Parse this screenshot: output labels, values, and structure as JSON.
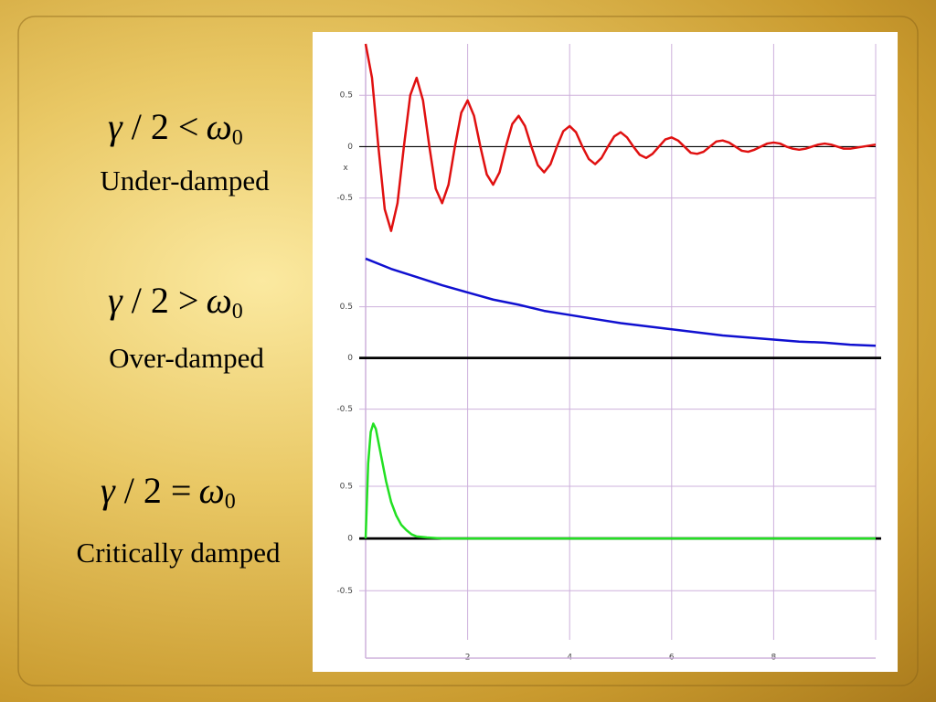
{
  "chart_data": [
    {
      "type": "line",
      "formula": [
        "γ",
        "/",
        "2",
        "<",
        "ω",
        "0"
      ],
      "label": "Under-damped",
      "ylabel": "x",
      "color": "#e01010",
      "xlim": [
        0,
        10
      ],
      "xticks": [
        2,
        4,
        6,
        8
      ],
      "xtick_labels": false,
      "ylim": [
        -0.93,
        1.0
      ],
      "yticks": [
        0.5,
        0,
        -0.5
      ],
      "x": [
        0,
        0.125,
        0.25,
        0.375,
        0.5,
        0.625,
        0.75,
        0.875,
        1,
        1.125,
        1.25,
        1.375,
        1.5,
        1.625,
        1.75,
        1.875,
        2,
        2.125,
        2.25,
        2.375,
        2.5,
        2.625,
        2.75,
        2.875,
        3,
        3.125,
        3.25,
        3.375,
        3.5,
        3.625,
        3.75,
        3.875,
        4,
        4.125,
        4.25,
        4.375,
        4.5,
        4.625,
        4.75,
        4.875,
        5,
        5.125,
        5.25,
        5.375,
        5.5,
        5.625,
        5.75,
        5.875,
        6,
        6.125,
        6.25,
        6.375,
        6.5,
        6.625,
        6.75,
        6.875,
        7,
        7.125,
        7.25,
        7.375,
        7.5,
        7.625,
        7.75,
        7.875,
        8,
        8.125,
        8.25,
        8.375,
        8.5,
        8.625,
        8.75,
        8.875,
        9,
        9.125,
        9.25,
        9.375,
        9.5,
        9.625,
        9.75,
        9.875,
        10
      ],
      "values": [
        1.0,
        0.67,
        0,
        -0.61,
        -0.82,
        -0.55,
        0,
        0.5,
        0.67,
        0.45,
        0,
        -0.41,
        -0.55,
        -0.37,
        0,
        0.33,
        0.45,
        0.3,
        0,
        -0.27,
        -0.37,
        -0.25,
        0,
        0.22,
        0.3,
        0.2,
        0,
        -0.18,
        -0.25,
        -0.17,
        0,
        0.15,
        0.2,
        0.14,
        0,
        -0.12,
        -0.17,
        -0.11,
        0,
        0.1,
        0.14,
        0.09,
        0,
        -0.08,
        -0.11,
        -0.07,
        0,
        0.07,
        0.09,
        0.06,
        0,
        -0.06,
        -0.07,
        -0.05,
        0,
        0.05,
        0.06,
        0.04,
        0,
        -0.04,
        -0.05,
        -0.03,
        0,
        0.03,
        0.04,
        0.03,
        0,
        -0.02,
        -0.03,
        -0.02,
        0,
        0.02,
        0.03,
        0.02,
        0,
        -0.02,
        -0.02,
        -0.01,
        0,
        0.01,
        0.02
      ]
    },
    {
      "type": "line",
      "formula": [
        "γ",
        "/",
        "2",
        ">",
        "ω",
        "0"
      ],
      "label": "Over-damped",
      "color": "#1010d0",
      "xlim": [
        0,
        10
      ],
      "xticks": [
        2,
        4,
        6,
        8
      ],
      "xtick_labels": false,
      "ylim": [
        -0.61,
        1.13
      ],
      "yticks": [
        0.5,
        0,
        -0.5
      ],
      "x": [
        0,
        0.5,
        1,
        1.5,
        2,
        2.5,
        3,
        3.5,
        4,
        4.5,
        5,
        5.5,
        6,
        6.5,
        7,
        7.5,
        8,
        8.5,
        9,
        9.5,
        10
      ],
      "values": [
        0.97,
        0.87,
        0.79,
        0.71,
        0.64,
        0.57,
        0.52,
        0.46,
        0.42,
        0.38,
        0.34,
        0.31,
        0.28,
        0.25,
        0.22,
        0.2,
        0.18,
        0.16,
        0.15,
        0.13,
        0.12
      ]
    },
    {
      "type": "line",
      "formula": [
        "γ",
        "/",
        "2",
        "=",
        "ω",
        "0"
      ],
      "label": "Critically damped",
      "color": "#22e022",
      "xlim": [
        0,
        10
      ],
      "xticks": [
        2,
        4,
        6,
        8
      ],
      "xtick_labels": true,
      "ylim": [
        -0.97,
        1.13
      ],
      "yticks": [
        0.5,
        0,
        -0.5
      ],
      "x": [
        0,
        0.05,
        0.1,
        0.15,
        0.2,
        0.3,
        0.4,
        0.5,
        0.6,
        0.7,
        0.8,
        0.9,
        1,
        1.2,
        1.5,
        10
      ],
      "values": [
        0,
        0.72,
        1.02,
        1.1,
        1.05,
        0.8,
        0.55,
        0.35,
        0.22,
        0.13,
        0.08,
        0.04,
        0.02,
        0.01,
        0,
        0
      ]
    }
  ]
}
